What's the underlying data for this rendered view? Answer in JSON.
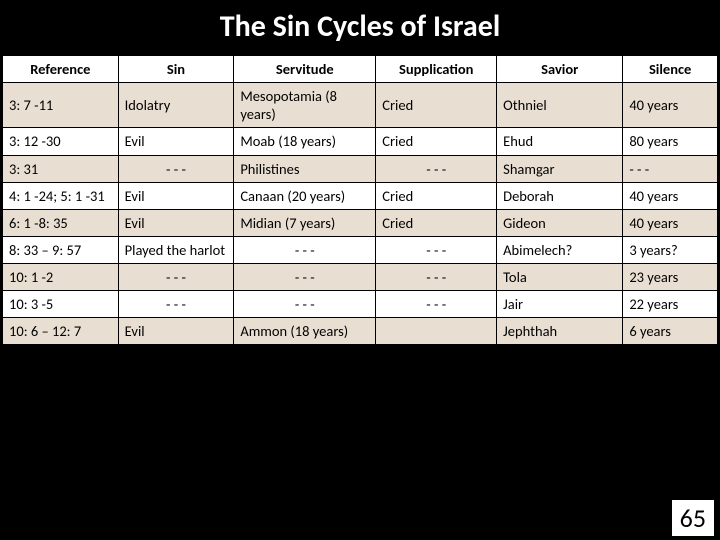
{
  "title": "The Sin Cycles of Israel",
  "pageNumber": "65",
  "headers": [
    "Reference",
    "Sin",
    "Servitude",
    "Supplication",
    "Savior",
    "Silence"
  ],
  "rows": [
    {
      "ref": "3: 7 -11",
      "sin": "Idolatry",
      "sinCenter": false,
      "serv": "Mesopotamia (8 years)",
      "servCenter": false,
      "supp": "Cried",
      "suppCenter": false,
      "sav": "Othniel",
      "sil": "40 years"
    },
    {
      "ref": "3: 12 -30",
      "sin": "Evil",
      "sinCenter": false,
      "serv": "Moab (18 years)",
      "servCenter": false,
      "supp": "Cried",
      "suppCenter": false,
      "sav": "Ehud",
      "sil": "80 years"
    },
    {
      "ref": "3: 31",
      "sin": "- - -",
      "sinCenter": true,
      "serv": "Philistines",
      "servCenter": false,
      "supp": "- - -",
      "suppCenter": true,
      "sav": "Shamgar",
      "sil": "- - -"
    },
    {
      "ref": "4: 1 -24; 5: 1 -31",
      "sin": "Evil",
      "sinCenter": false,
      "serv": "Canaan (20 years)",
      "servCenter": false,
      "supp": "Cried",
      "suppCenter": false,
      "sav": "Deborah",
      "sil": "40 years"
    },
    {
      "ref": "6: 1 -8: 35",
      "sin": "Evil",
      "sinCenter": false,
      "serv": "Midian (7 years)",
      "servCenter": false,
      "supp": "Cried",
      "suppCenter": false,
      "sav": "Gideon",
      "sil": "40 years"
    },
    {
      "ref": "8: 33 – 9: 57",
      "sin": "Played the harlot",
      "sinCenter": false,
      "serv": "- - -",
      "servCenter": true,
      "supp": "- - -",
      "suppCenter": true,
      "sav": "Abimelech?",
      "sil": "3 years?"
    },
    {
      "ref": "10: 1 -2",
      "sin": "- - -",
      "sinCenter": true,
      "serv": "- - -",
      "servCenter": true,
      "supp": "- - -",
      "suppCenter": true,
      "sav": "Tola",
      "sil": "23 years"
    },
    {
      "ref": "10: 3 -5",
      "sin": "- - -",
      "sinCenter": true,
      "serv": "- - -",
      "servCenter": true,
      "supp": "- - -",
      "suppCenter": true,
      "sav": "Jair",
      "sil": "22 years"
    },
    {
      "ref": "10: 6 – 12: 7",
      "sin": "Evil",
      "sinCenter": false,
      "serv": "Ammon (18 years)",
      "servCenter": false,
      "supp": "",
      "suppCenter": false,
      "sav": "Jephthah",
      "sil": "6 years"
    }
  ]
}
